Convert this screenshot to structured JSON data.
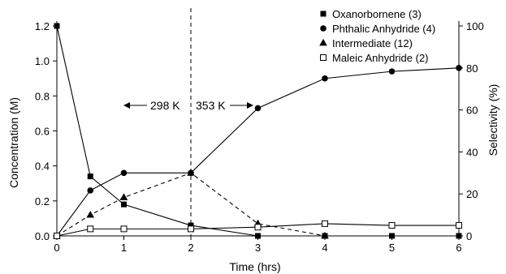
{
  "chart_data": {
    "type": "line",
    "xlabel": "Time (hrs)",
    "ylabel": "Concentration (M)",
    "y2label": "Selectivity (%)",
    "xlim": [
      0,
      6
    ],
    "ylim": [
      0,
      1.2
    ],
    "y2lim": [
      0,
      100
    ],
    "x_ticks": [
      "0",
      "1",
      "2",
      "3",
      "4",
      "5",
      "6"
    ],
    "y_ticks": [
      "0.0",
      "0.2",
      "0.4",
      "0.6",
      "0.8",
      "1.0",
      "1.2"
    ],
    "y2_ticks": [
      "0",
      "20",
      "40",
      "60",
      "80",
      "100"
    ],
    "grid": false,
    "legend_position": "top-right",
    "series": [
      {
        "name": "Oxanorbornene (3)",
        "marker": "filled-square",
        "line": "solid",
        "color": "#000000",
        "x": [
          0,
          0.5,
          1,
          2,
          3,
          4,
          5,
          6
        ],
        "y": [
          1.2,
          0.34,
          0.18,
          0.06,
          0.0,
          0.0,
          0.0,
          0.0
        ]
      },
      {
        "name": "Phthalic Anhydride (4)",
        "marker": "filled-circle",
        "line": "solid",
        "color": "#000000",
        "x": [
          0,
          0.5,
          1,
          2,
          3,
          4,
          5,
          6
        ],
        "y": [
          0.0,
          0.26,
          0.36,
          0.36,
          0.73,
          0.9,
          0.94,
          0.96
        ]
      },
      {
        "name": "Intermediate (12)",
        "marker": "filled-triangle",
        "line": "dashed",
        "color": "#000000",
        "x": [
          0,
          0.5,
          1,
          2,
          3,
          4
        ],
        "y": [
          0.0,
          0.12,
          0.22,
          0.36,
          0.07,
          0.0
        ]
      },
      {
        "name": "Maleic Anhydride (2)",
        "marker": "open-square",
        "line": "solid",
        "color": "#000000",
        "x": [
          0,
          0.5,
          1,
          2,
          3,
          4,
          5,
          6
        ],
        "y": [
          0.0,
          0.04,
          0.04,
          0.04,
          0.05,
          0.07,
          0.06,
          0.06
        ]
      }
    ],
    "vertical_line": {
      "x": 2,
      "style": "dashed"
    },
    "annotations": [
      {
        "text": "298 K",
        "arrow": "left"
      },
      {
        "text": "353 K",
        "arrow": "right"
      }
    ]
  }
}
